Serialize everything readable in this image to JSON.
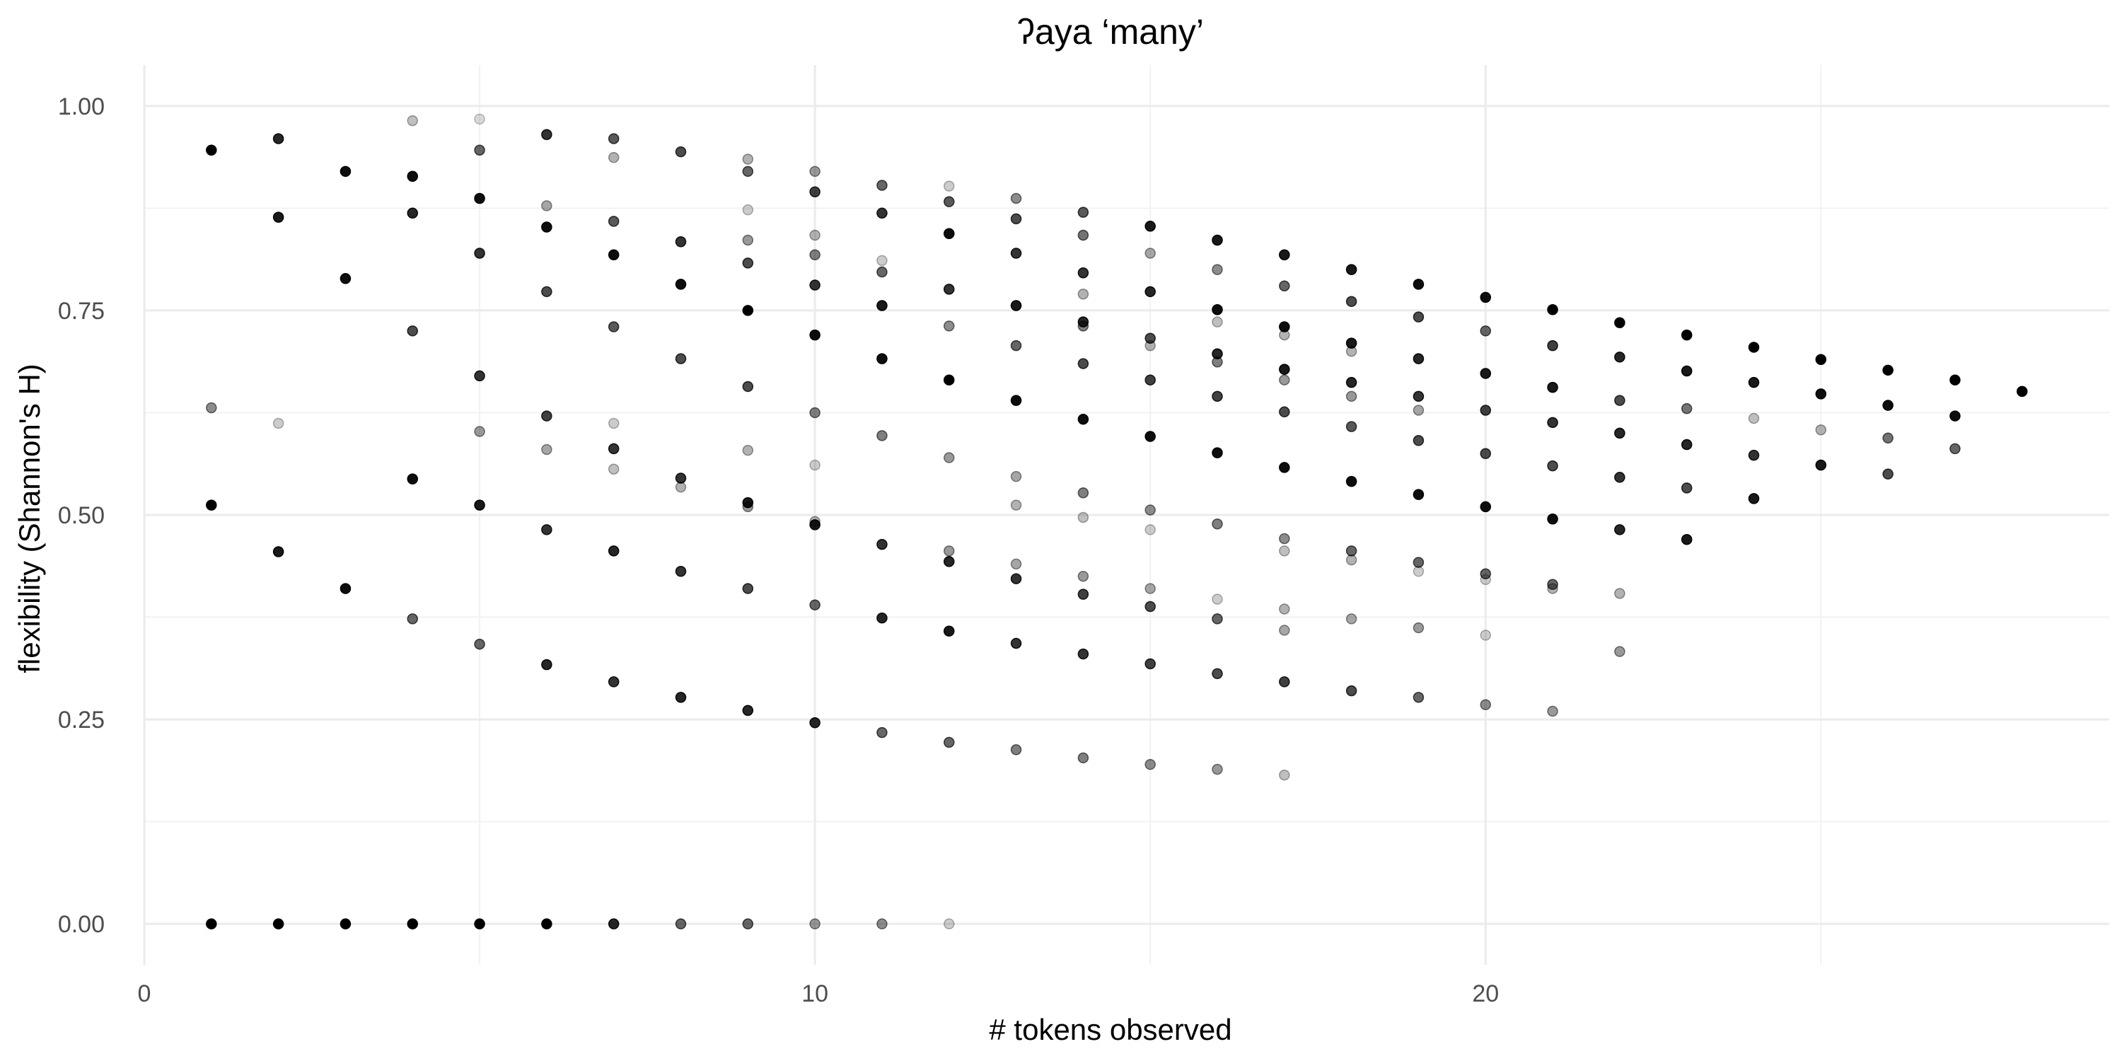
{
  "chart_data": {
    "type": "scatter",
    "title": "ʔaya ‘many’",
    "xlabel": "# tokens observed",
    "ylabel": "flexibility (Shannon's H)",
    "xlim": [
      0,
      29.3
    ],
    "ylim": [
      -0.05,
      1.05
    ],
    "x_ticks": [
      0,
      10,
      20
    ],
    "x_tick_labels": [
      "0",
      "10",
      "20"
    ],
    "y_ticks": [
      0,
      0.25,
      0.5,
      0.75,
      1
    ],
    "y_tick_labels": [
      "0.00",
      "0.25",
      "0.50",
      "0.75",
      "1.00"
    ],
    "grid": true,
    "legend": "none",
    "point_color": "#000000",
    "points": [
      {
        "x": 1,
        "y": 0.946,
        "a": 1
      },
      {
        "x": 1,
        "y": 0.631,
        "a": 0.45
      },
      {
        "x": 1,
        "y": 0.512,
        "a": 1
      },
      {
        "x": 1,
        "y": 0,
        "a": 1
      },
      {
        "x": 2,
        "y": 0.96,
        "a": 0.85
      },
      {
        "x": 2,
        "y": 0.864,
        "a": 0.9
      },
      {
        "x": 2,
        "y": 0.612,
        "a": 0.2
      },
      {
        "x": 2,
        "y": 0.455,
        "a": 0.9
      },
      {
        "x": 2,
        "y": 0,
        "a": 1
      },
      {
        "x": 3,
        "y": 0.92,
        "a": 0.95
      },
      {
        "x": 3,
        "y": 0.789,
        "a": 0.95
      },
      {
        "x": 3,
        "y": 0.41,
        "a": 0.95
      },
      {
        "x": 3,
        "y": 0,
        "a": 1
      },
      {
        "x": 4,
        "y": 0.982,
        "a": 0.25
      },
      {
        "x": 4,
        "y": 0.914,
        "a": 0.95
      },
      {
        "x": 4,
        "y": 0.869,
        "a": 0.85
      },
      {
        "x": 4,
        "y": 0.725,
        "a": 0.7
      },
      {
        "x": 4,
        "y": 0.544,
        "a": 0.95
      },
      {
        "x": 4,
        "y": 0.373,
        "a": 0.6
      },
      {
        "x": 4,
        "y": 0,
        "a": 1
      },
      {
        "x": 5,
        "y": 0.984,
        "a": 0.15
      },
      {
        "x": 5,
        "y": 0.946,
        "a": 0.6
      },
      {
        "x": 5,
        "y": 0.887,
        "a": 0.95
      },
      {
        "x": 5,
        "y": 0.82,
        "a": 0.8
      },
      {
        "x": 5,
        "y": 0.67,
        "a": 0.8
      },
      {
        "x": 5,
        "y": 0.602,
        "a": 0.4
      },
      {
        "x": 5,
        "y": 0.512,
        "a": 0.9
      },
      {
        "x": 5,
        "y": 0.342,
        "a": 0.6
      },
      {
        "x": 5,
        "y": 0,
        "a": 1
      },
      {
        "x": 6,
        "y": 0.965,
        "a": 0.8
      },
      {
        "x": 6,
        "y": 0.878,
        "a": 0.35
      },
      {
        "x": 6,
        "y": 0.852,
        "a": 0.95
      },
      {
        "x": 6,
        "y": 0.773,
        "a": 0.7
      },
      {
        "x": 6,
        "y": 0.621,
        "a": 0.75
      },
      {
        "x": 6,
        "y": 0.58,
        "a": 0.35
      },
      {
        "x": 6,
        "y": 0.482,
        "a": 0.8
      },
      {
        "x": 6,
        "y": 0.317,
        "a": 0.85
      },
      {
        "x": 6,
        "y": 0,
        "a": 1
      },
      {
        "x": 7,
        "y": 0.96,
        "a": 0.65
      },
      {
        "x": 7,
        "y": 0.937,
        "a": 0.3
      },
      {
        "x": 7,
        "y": 0.859,
        "a": 0.65
      },
      {
        "x": 7,
        "y": 0.818,
        "a": 0.95
      },
      {
        "x": 7,
        "y": 0.73,
        "a": 0.65
      },
      {
        "x": 7,
        "y": 0.612,
        "a": 0.2
      },
      {
        "x": 7,
        "y": 0.581,
        "a": 0.8
      },
      {
        "x": 7,
        "y": 0.556,
        "a": 0.25
      },
      {
        "x": 7,
        "y": 0.456,
        "a": 0.85
      },
      {
        "x": 7,
        "y": 0.296,
        "a": 0.8
      },
      {
        "x": 7,
        "y": 0,
        "a": 0.85
      },
      {
        "x": 8,
        "y": 0.944,
        "a": 0.7
      },
      {
        "x": 8,
        "y": 0.834,
        "a": 0.8
      },
      {
        "x": 8,
        "y": 0.782,
        "a": 0.95
      },
      {
        "x": 8,
        "y": 0.691,
        "a": 0.7
      },
      {
        "x": 8,
        "y": 0.545,
        "a": 0.8
      },
      {
        "x": 8,
        "y": 0.534,
        "a": 0.3
      },
      {
        "x": 8,
        "y": 0.431,
        "a": 0.8
      },
      {
        "x": 8,
        "y": 0.277,
        "a": 0.85
      },
      {
        "x": 8,
        "y": 0,
        "a": 0.6
      },
      {
        "x": 9,
        "y": 0.935,
        "a": 0.3
      },
      {
        "x": 9,
        "y": 0.92,
        "a": 0.6
      },
      {
        "x": 9,
        "y": 0.873,
        "a": 0.2
      },
      {
        "x": 9,
        "y": 0.836,
        "a": 0.4
      },
      {
        "x": 9,
        "y": 0.808,
        "a": 0.7
      },
      {
        "x": 9,
        "y": 0.75,
        "a": 1
      },
      {
        "x": 9,
        "y": 0.657,
        "a": 0.7
      },
      {
        "x": 9,
        "y": 0.579,
        "a": 0.3
      },
      {
        "x": 9,
        "y": 0.515,
        "a": 0.9
      },
      {
        "x": 9,
        "y": 0.51,
        "a": 0.4
      },
      {
        "x": 9,
        "y": 0.41,
        "a": 0.7
      },
      {
        "x": 9,
        "y": 0.261,
        "a": 0.85
      },
      {
        "x": 9,
        "y": 0,
        "a": 0.6
      },
      {
        "x": 10,
        "y": 0.92,
        "a": 0.4
      },
      {
        "x": 10,
        "y": 0.895,
        "a": 0.75
      },
      {
        "x": 10,
        "y": 0.842,
        "a": 0.3
      },
      {
        "x": 10,
        "y": 0.818,
        "a": 0.5
      },
      {
        "x": 10,
        "y": 0.781,
        "a": 0.8
      },
      {
        "x": 10,
        "y": 0.72,
        "a": 0.95
      },
      {
        "x": 10,
        "y": 0.625,
        "a": 0.5
      },
      {
        "x": 10,
        "y": 0.561,
        "a": 0.2
      },
      {
        "x": 10,
        "y": 0.492,
        "a": 0.3
      },
      {
        "x": 10,
        "y": 0.488,
        "a": 0.9
      },
      {
        "x": 10,
        "y": 0.39,
        "a": 0.6
      },
      {
        "x": 10,
        "y": 0.246,
        "a": 0.85
      },
      {
        "x": 10,
        "y": 0,
        "a": 0.4
      },
      {
        "x": 11,
        "y": 0.903,
        "a": 0.6
      },
      {
        "x": 11,
        "y": 0.869,
        "a": 0.8
      },
      {
        "x": 11,
        "y": 0.811,
        "a": 0.2
      },
      {
        "x": 11,
        "y": 0.797,
        "a": 0.6
      },
      {
        "x": 11,
        "y": 0.756,
        "a": 0.9
      },
      {
        "x": 11,
        "y": 0.691,
        "a": 0.95
      },
      {
        "x": 11,
        "y": 0.597,
        "a": 0.5
      },
      {
        "x": 11,
        "y": 0.464,
        "a": 0.8
      },
      {
        "x": 11,
        "y": 0.374,
        "a": 0.85
      },
      {
        "x": 11,
        "y": 0.234,
        "a": 0.6
      },
      {
        "x": 11,
        "y": 0,
        "a": 0.45
      },
      {
        "x": 12,
        "y": 0.902,
        "a": 0.2
      },
      {
        "x": 12,
        "y": 0.883,
        "a": 0.65
      },
      {
        "x": 12,
        "y": 0.844,
        "a": 0.95
      },
      {
        "x": 12,
        "y": 0.776,
        "a": 0.8
      },
      {
        "x": 12,
        "y": 0.731,
        "a": 0.45
      },
      {
        "x": 12,
        "y": 0.665,
        "a": 1
      },
      {
        "x": 12,
        "y": 0.57,
        "a": 0.4
      },
      {
        "x": 12,
        "y": 0.456,
        "a": 0.4
      },
      {
        "x": 12,
        "y": 0.443,
        "a": 0.85
      },
      {
        "x": 12,
        "y": 0.358,
        "a": 0.9
      },
      {
        "x": 12,
        "y": 0.222,
        "a": 0.6
      },
      {
        "x": 12,
        "y": 0,
        "a": 0.2
      },
      {
        "x": 13,
        "y": 0.887,
        "a": 0.45
      },
      {
        "x": 13,
        "y": 0.862,
        "a": 0.7
      },
      {
        "x": 13,
        "y": 0.82,
        "a": 0.8
      },
      {
        "x": 13,
        "y": 0.756,
        "a": 0.9
      },
      {
        "x": 13,
        "y": 0.707,
        "a": 0.6
      },
      {
        "x": 13,
        "y": 0.64,
        "a": 0.95
      },
      {
        "x": 13,
        "y": 0.547,
        "a": 0.35
      },
      {
        "x": 13,
        "y": 0.512,
        "a": 0.3
      },
      {
        "x": 13,
        "y": 0.44,
        "a": 0.35
      },
      {
        "x": 13,
        "y": 0.422,
        "a": 0.8
      },
      {
        "x": 13,
        "y": 0.343,
        "a": 0.8
      },
      {
        "x": 13,
        "y": 0.213,
        "a": 0.5
      },
      {
        "x": 14,
        "y": 0.87,
        "a": 0.65
      },
      {
        "x": 14,
        "y": 0.842,
        "a": 0.55
      },
      {
        "x": 14,
        "y": 0.796,
        "a": 0.8
      },
      {
        "x": 14,
        "y": 0.77,
        "a": 0.3
      },
      {
        "x": 14,
        "y": 0.736,
        "a": 0.85
      },
      {
        "x": 14,
        "y": 0.731,
        "a": 0.5
      },
      {
        "x": 14,
        "y": 0.685,
        "a": 0.7
      },
      {
        "x": 14,
        "y": 0.617,
        "a": 0.95
      },
      {
        "x": 14,
        "y": 0.527,
        "a": 0.5
      },
      {
        "x": 14,
        "y": 0.497,
        "a": 0.25
      },
      {
        "x": 14,
        "y": 0.425,
        "a": 0.4
      },
      {
        "x": 14,
        "y": 0.403,
        "a": 0.75
      },
      {
        "x": 14,
        "y": 0.33,
        "a": 0.8
      },
      {
        "x": 14,
        "y": 0.203,
        "a": 0.5
      },
      {
        "x": 15,
        "y": 0.853,
        "a": 0.9
      },
      {
        "x": 15,
        "y": 0.82,
        "a": 0.35
      },
      {
        "x": 15,
        "y": 0.773,
        "a": 0.85
      },
      {
        "x": 15,
        "y": 0.716,
        "a": 0.7
      },
      {
        "x": 15,
        "y": 0.707,
        "a": 0.3
      },
      {
        "x": 15,
        "y": 0.665,
        "a": 0.75
      },
      {
        "x": 15,
        "y": 0.596,
        "a": 0.95
      },
      {
        "x": 15,
        "y": 0.506,
        "a": 0.45
      },
      {
        "x": 15,
        "y": 0.482,
        "a": 0.2
      },
      {
        "x": 15,
        "y": 0.41,
        "a": 0.35
      },
      {
        "x": 15,
        "y": 0.388,
        "a": 0.7
      },
      {
        "x": 15,
        "y": 0.318,
        "a": 0.75
      },
      {
        "x": 15,
        "y": 0.195,
        "a": 0.45
      },
      {
        "x": 16,
        "y": 0.836,
        "a": 0.9
      },
      {
        "x": 16,
        "y": 0.8,
        "a": 0.45
      },
      {
        "x": 16,
        "y": 0.751,
        "a": 0.95
      },
      {
        "x": 16,
        "y": 0.736,
        "a": 0.25
      },
      {
        "x": 16,
        "y": 0.697,
        "a": 0.85
      },
      {
        "x": 16,
        "y": 0.687,
        "a": 0.5
      },
      {
        "x": 16,
        "y": 0.645,
        "a": 0.75
      },
      {
        "x": 16,
        "y": 0.576,
        "a": 0.95
      },
      {
        "x": 16,
        "y": 0.489,
        "a": 0.5
      },
      {
        "x": 16,
        "y": 0.397,
        "a": 0.2
      },
      {
        "x": 16,
        "y": 0.373,
        "a": 0.6
      },
      {
        "x": 16,
        "y": 0.306,
        "a": 0.7
      },
      {
        "x": 16,
        "y": 0.189,
        "a": 0.4
      },
      {
        "x": 17,
        "y": 0.818,
        "a": 0.9
      },
      {
        "x": 17,
        "y": 0.78,
        "a": 0.6
      },
      {
        "x": 17,
        "y": 0.73,
        "a": 0.95
      },
      {
        "x": 17,
        "y": 0.72,
        "a": 0.3
      },
      {
        "x": 17,
        "y": 0.678,
        "a": 0.9
      },
      {
        "x": 17,
        "y": 0.665,
        "a": 0.4
      },
      {
        "x": 17,
        "y": 0.626,
        "a": 0.7
      },
      {
        "x": 17,
        "y": 0.558,
        "a": 0.95
      },
      {
        "x": 17,
        "y": 0.471,
        "a": 0.45
      },
      {
        "x": 17,
        "y": 0.456,
        "a": 0.25
      },
      {
        "x": 17,
        "y": 0.385,
        "a": 0.3
      },
      {
        "x": 17,
        "y": 0.359,
        "a": 0.35
      },
      {
        "x": 17,
        "y": 0.296,
        "a": 0.75
      },
      {
        "x": 17,
        "y": 0.182,
        "a": 0.25
      },
      {
        "x": 18,
        "y": 0.8,
        "a": 0.9
      },
      {
        "x": 18,
        "y": 0.761,
        "a": 0.7
      },
      {
        "x": 18,
        "y": 0.71,
        "a": 0.9
      },
      {
        "x": 18,
        "y": 0.7,
        "a": 0.3
      },
      {
        "x": 18,
        "y": 0.662,
        "a": 0.85
      },
      {
        "x": 18,
        "y": 0.645,
        "a": 0.4
      },
      {
        "x": 18,
        "y": 0.608,
        "a": 0.65
      },
      {
        "x": 18,
        "y": 0.541,
        "a": 0.95
      },
      {
        "x": 18,
        "y": 0.456,
        "a": 0.6
      },
      {
        "x": 18,
        "y": 0.445,
        "a": 0.3
      },
      {
        "x": 18,
        "y": 0.373,
        "a": 0.35
      },
      {
        "x": 18,
        "y": 0.285,
        "a": 0.7
      },
      {
        "x": 19,
        "y": 0.782,
        "a": 0.95
      },
      {
        "x": 19,
        "y": 0.742,
        "a": 0.7
      },
      {
        "x": 19,
        "y": 0.691,
        "a": 0.85
      },
      {
        "x": 19,
        "y": 0.645,
        "a": 0.8
      },
      {
        "x": 19,
        "y": 0.628,
        "a": 0.35
      },
      {
        "x": 19,
        "y": 0.591,
        "a": 0.7
      },
      {
        "x": 19,
        "y": 0.525,
        "a": 0.95
      },
      {
        "x": 19,
        "y": 0.442,
        "a": 0.6
      },
      {
        "x": 19,
        "y": 0.431,
        "a": 0.2
      },
      {
        "x": 19,
        "y": 0.362,
        "a": 0.4
      },
      {
        "x": 19,
        "y": 0.277,
        "a": 0.6
      },
      {
        "x": 20,
        "y": 0.766,
        "a": 0.95
      },
      {
        "x": 20,
        "y": 0.725,
        "a": 0.6
      },
      {
        "x": 20,
        "y": 0.673,
        "a": 0.9
      },
      {
        "x": 20,
        "y": 0.628,
        "a": 0.75
      },
      {
        "x": 20,
        "y": 0.575,
        "a": 0.7
      },
      {
        "x": 20,
        "y": 0.51,
        "a": 0.95
      },
      {
        "x": 20,
        "y": 0.428,
        "a": 0.6
      },
      {
        "x": 20,
        "y": 0.421,
        "a": 0.2
      },
      {
        "x": 20,
        "y": 0.353,
        "a": 0.2
      },
      {
        "x": 20,
        "y": 0.268,
        "a": 0.45
      },
      {
        "x": 21,
        "y": 0.751,
        "a": 1
      },
      {
        "x": 21,
        "y": 0.707,
        "a": 0.75
      },
      {
        "x": 21,
        "y": 0.656,
        "a": 0.9
      },
      {
        "x": 21,
        "y": 0.613,
        "a": 0.8
      },
      {
        "x": 21,
        "y": 0.56,
        "a": 0.7
      },
      {
        "x": 21,
        "y": 0.495,
        "a": 0.95
      },
      {
        "x": 21,
        "y": 0.415,
        "a": 0.6
      },
      {
        "x": 21,
        "y": 0.41,
        "a": 0.3
      },
      {
        "x": 21,
        "y": 0.26,
        "a": 0.4
      },
      {
        "x": 22,
        "y": 0.735,
        "a": 1
      },
      {
        "x": 22,
        "y": 0.693,
        "a": 0.85
      },
      {
        "x": 22,
        "y": 0.64,
        "a": 0.7
      },
      {
        "x": 22,
        "y": 0.6,
        "a": 0.85
      },
      {
        "x": 22,
        "y": 0.546,
        "a": 0.8
      },
      {
        "x": 22,
        "y": 0.482,
        "a": 0.85
      },
      {
        "x": 22,
        "y": 0.404,
        "a": 0.3
      },
      {
        "x": 22,
        "y": 0.333,
        "a": 0.4
      },
      {
        "x": 23,
        "y": 0.72,
        "a": 1
      },
      {
        "x": 23,
        "y": 0.676,
        "a": 0.9
      },
      {
        "x": 23,
        "y": 0.63,
        "a": 0.55
      },
      {
        "x": 23,
        "y": 0.586,
        "a": 0.85
      },
      {
        "x": 23,
        "y": 0.533,
        "a": 0.7
      },
      {
        "x": 23,
        "y": 0.47,
        "a": 0.9
      },
      {
        "x": 24,
        "y": 0.705,
        "a": 1
      },
      {
        "x": 24,
        "y": 0.662,
        "a": 0.9
      },
      {
        "x": 24,
        "y": 0.618,
        "a": 0.25
      },
      {
        "x": 24,
        "y": 0.573,
        "a": 0.8
      },
      {
        "x": 24,
        "y": 0.52,
        "a": 0.9
      },
      {
        "x": 25,
        "y": 0.69,
        "a": 1
      },
      {
        "x": 25,
        "y": 0.648,
        "a": 0.95
      },
      {
        "x": 25,
        "y": 0.604,
        "a": 0.3
      },
      {
        "x": 25,
        "y": 0.561,
        "a": 0.9
      },
      {
        "x": 26,
        "y": 0.677,
        "a": 1
      },
      {
        "x": 26,
        "y": 0.634,
        "a": 0.95
      },
      {
        "x": 26,
        "y": 0.594,
        "a": 0.55
      },
      {
        "x": 26,
        "y": 0.55,
        "a": 0.7
      },
      {
        "x": 27,
        "y": 0.665,
        "a": 1
      },
      {
        "x": 27,
        "y": 0.621,
        "a": 0.95
      },
      {
        "x": 27,
        "y": 0.581,
        "a": 0.6
      },
      {
        "x": 28,
        "y": 0.651,
        "a": 1
      }
    ]
  }
}
